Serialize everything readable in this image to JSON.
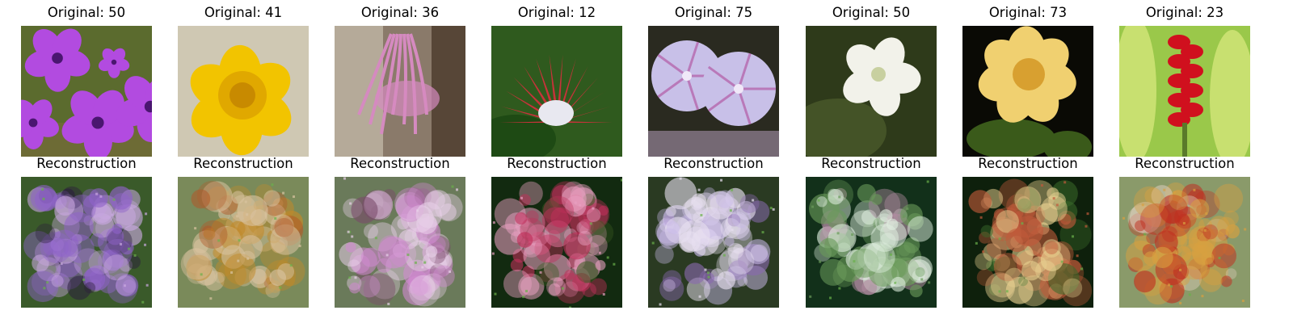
{
  "panels": [
    {
      "original_title": "Original: 50",
      "reconstruction_title": "Reconstruction",
      "original": {
        "subject": "purple-petunias",
        "colors": {
          "bg": "#5b6b2e",
          "petal": "#b24be0",
          "center": "#4a1670"
        }
      },
      "reconstruction": {
        "colors": {
          "bg": "#3a5a2a",
          "a": "#8f63c9",
          "b": "#c9a8e0",
          "c": "#2b1e3d"
        }
      }
    },
    {
      "original_title": "Original: 41",
      "reconstruction_title": "Reconstruction",
      "original": {
        "subject": "yellow-daffodil",
        "colors": {
          "bg": "#cfc8b3",
          "petal": "#f2c400",
          "center": "#e0a800"
        }
      },
      "reconstruction": {
        "colors": {
          "bg": "#7a8a5a",
          "a": "#c08a2a",
          "b": "#d9c3a0",
          "c": "#b05a2a"
        }
      }
    },
    {
      "original_title": "Original: 36",
      "reconstruction_title": "Reconstruction",
      "original": {
        "subject": "pink-nerine",
        "colors": {
          "bg": "#8a7a6a",
          "petal": "#d58ac0",
          "center": "#6b2b4a"
        }
      },
      "reconstruction": {
        "colors": {
          "bg": "#6a7a5a",
          "a": "#d08ad0",
          "b": "#e8d0e8",
          "c": "#7a4a6a"
        }
      }
    },
    {
      "original_title": "Original: 12",
      "reconstruction_title": "Reconstruction",
      "original": {
        "subject": "king-protea",
        "colors": {
          "bg": "#2f5a1e",
          "petal": "#c8323a",
          "center": "#e8e8f0"
        }
      },
      "reconstruction": {
        "colors": {
          "bg": "#122a10",
          "a": "#c0305a",
          "b": "#e8a0c0",
          "c": "#3a5a20"
        }
      }
    },
    {
      "original_title": "Original: 75",
      "reconstruction_title": "Reconstruction",
      "original": {
        "subject": "morning-glory",
        "colors": {
          "bg": "#2a2a20",
          "petal": "#c8c0e8",
          "center": "#b04a9a"
        }
      },
      "reconstruction": {
        "colors": {
          "bg": "#2a3a22",
          "a": "#c8b8e8",
          "b": "#e8e0f0",
          "c": "#8a6ab0"
        }
      }
    },
    {
      "original_title": "Original: 50",
      "reconstruction_title": "Reconstruction",
      "original": {
        "subject": "white-petunia",
        "colors": {
          "bg": "#2e3a1a",
          "petal": "#f2f2ea",
          "center": "#c8d0a0"
        }
      },
      "reconstruction": {
        "colors": {
          "bg": "#12301a",
          "a": "#e0efe0",
          "b": "#6a9a5a",
          "c": "#b08aa0"
        }
      }
    },
    {
      "original_title": "Original: 73",
      "reconstruction_title": "Reconstruction",
      "original": {
        "subject": "yellow-rose",
        "colors": {
          "bg": "#0a0a05",
          "petal": "#f0d070",
          "center": "#d8a030"
        }
      },
      "reconstruction": {
        "colors": {
          "bg": "#0e200c",
          "a": "#e8d090",
          "b": "#c05a3a",
          "c": "#3a6a2a"
        }
      }
    },
    {
      "original_title": "Original: 23",
      "reconstruction_title": "Reconstruction",
      "original": {
        "subject": "red-ginger",
        "colors": {
          "bg": "#9ac84a",
          "petal": "#d0101e",
          "center": "#7a0010"
        }
      },
      "reconstruction": {
        "colors": {
          "bg": "#8a9a6a",
          "a": "#c03020",
          "b": "#d8a040",
          "c": "#e0d0c0"
        }
      }
    }
  ]
}
